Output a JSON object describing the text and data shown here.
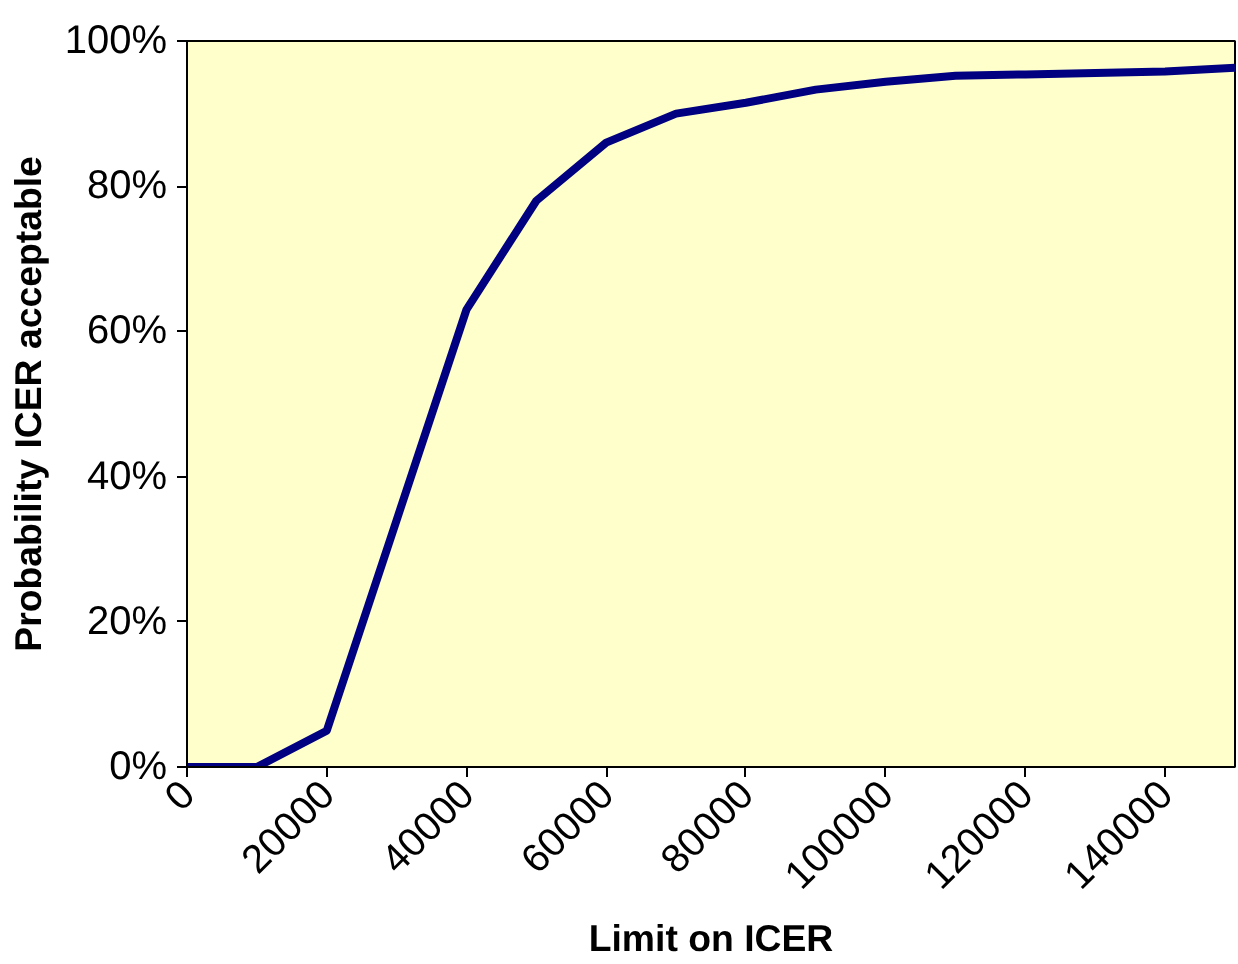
{
  "chart_data": {
    "type": "line",
    "xlabel": "Limit on ICER",
    "ylabel": "Probability ICER acceptable",
    "x": [
      0,
      10000,
      20000,
      30000,
      40000,
      50000,
      60000,
      70000,
      80000,
      90000,
      100000,
      110000,
      120000,
      130000,
      140000,
      150000
    ],
    "series": [
      {
        "color": "#000080",
        "values": [
          0,
          0,
          5,
          34,
          63,
          78,
          86,
          90,
          91.5,
          93.3,
          94.4,
          95.2,
          95.4,
          95.6,
          95.8,
          96.3
        ]
      }
    ],
    "xlim": [
      0,
      150000
    ],
    "xticks": [
      0,
      20000,
      40000,
      60000,
      80000,
      100000,
      120000,
      140000
    ],
    "ylim": [
      0,
      100
    ],
    "yticks": [
      {
        "value": 0,
        "label": "0%"
      },
      {
        "value": 20,
        "label": "20%"
      },
      {
        "value": 40,
        "label": "40%"
      },
      {
        "value": 60,
        "label": "60%"
      },
      {
        "value": 80,
        "label": "80%"
      },
      {
        "value": 100,
        "label": "100%"
      }
    ],
    "grid": false,
    "marker": "none",
    "line_style": "solid"
  }
}
